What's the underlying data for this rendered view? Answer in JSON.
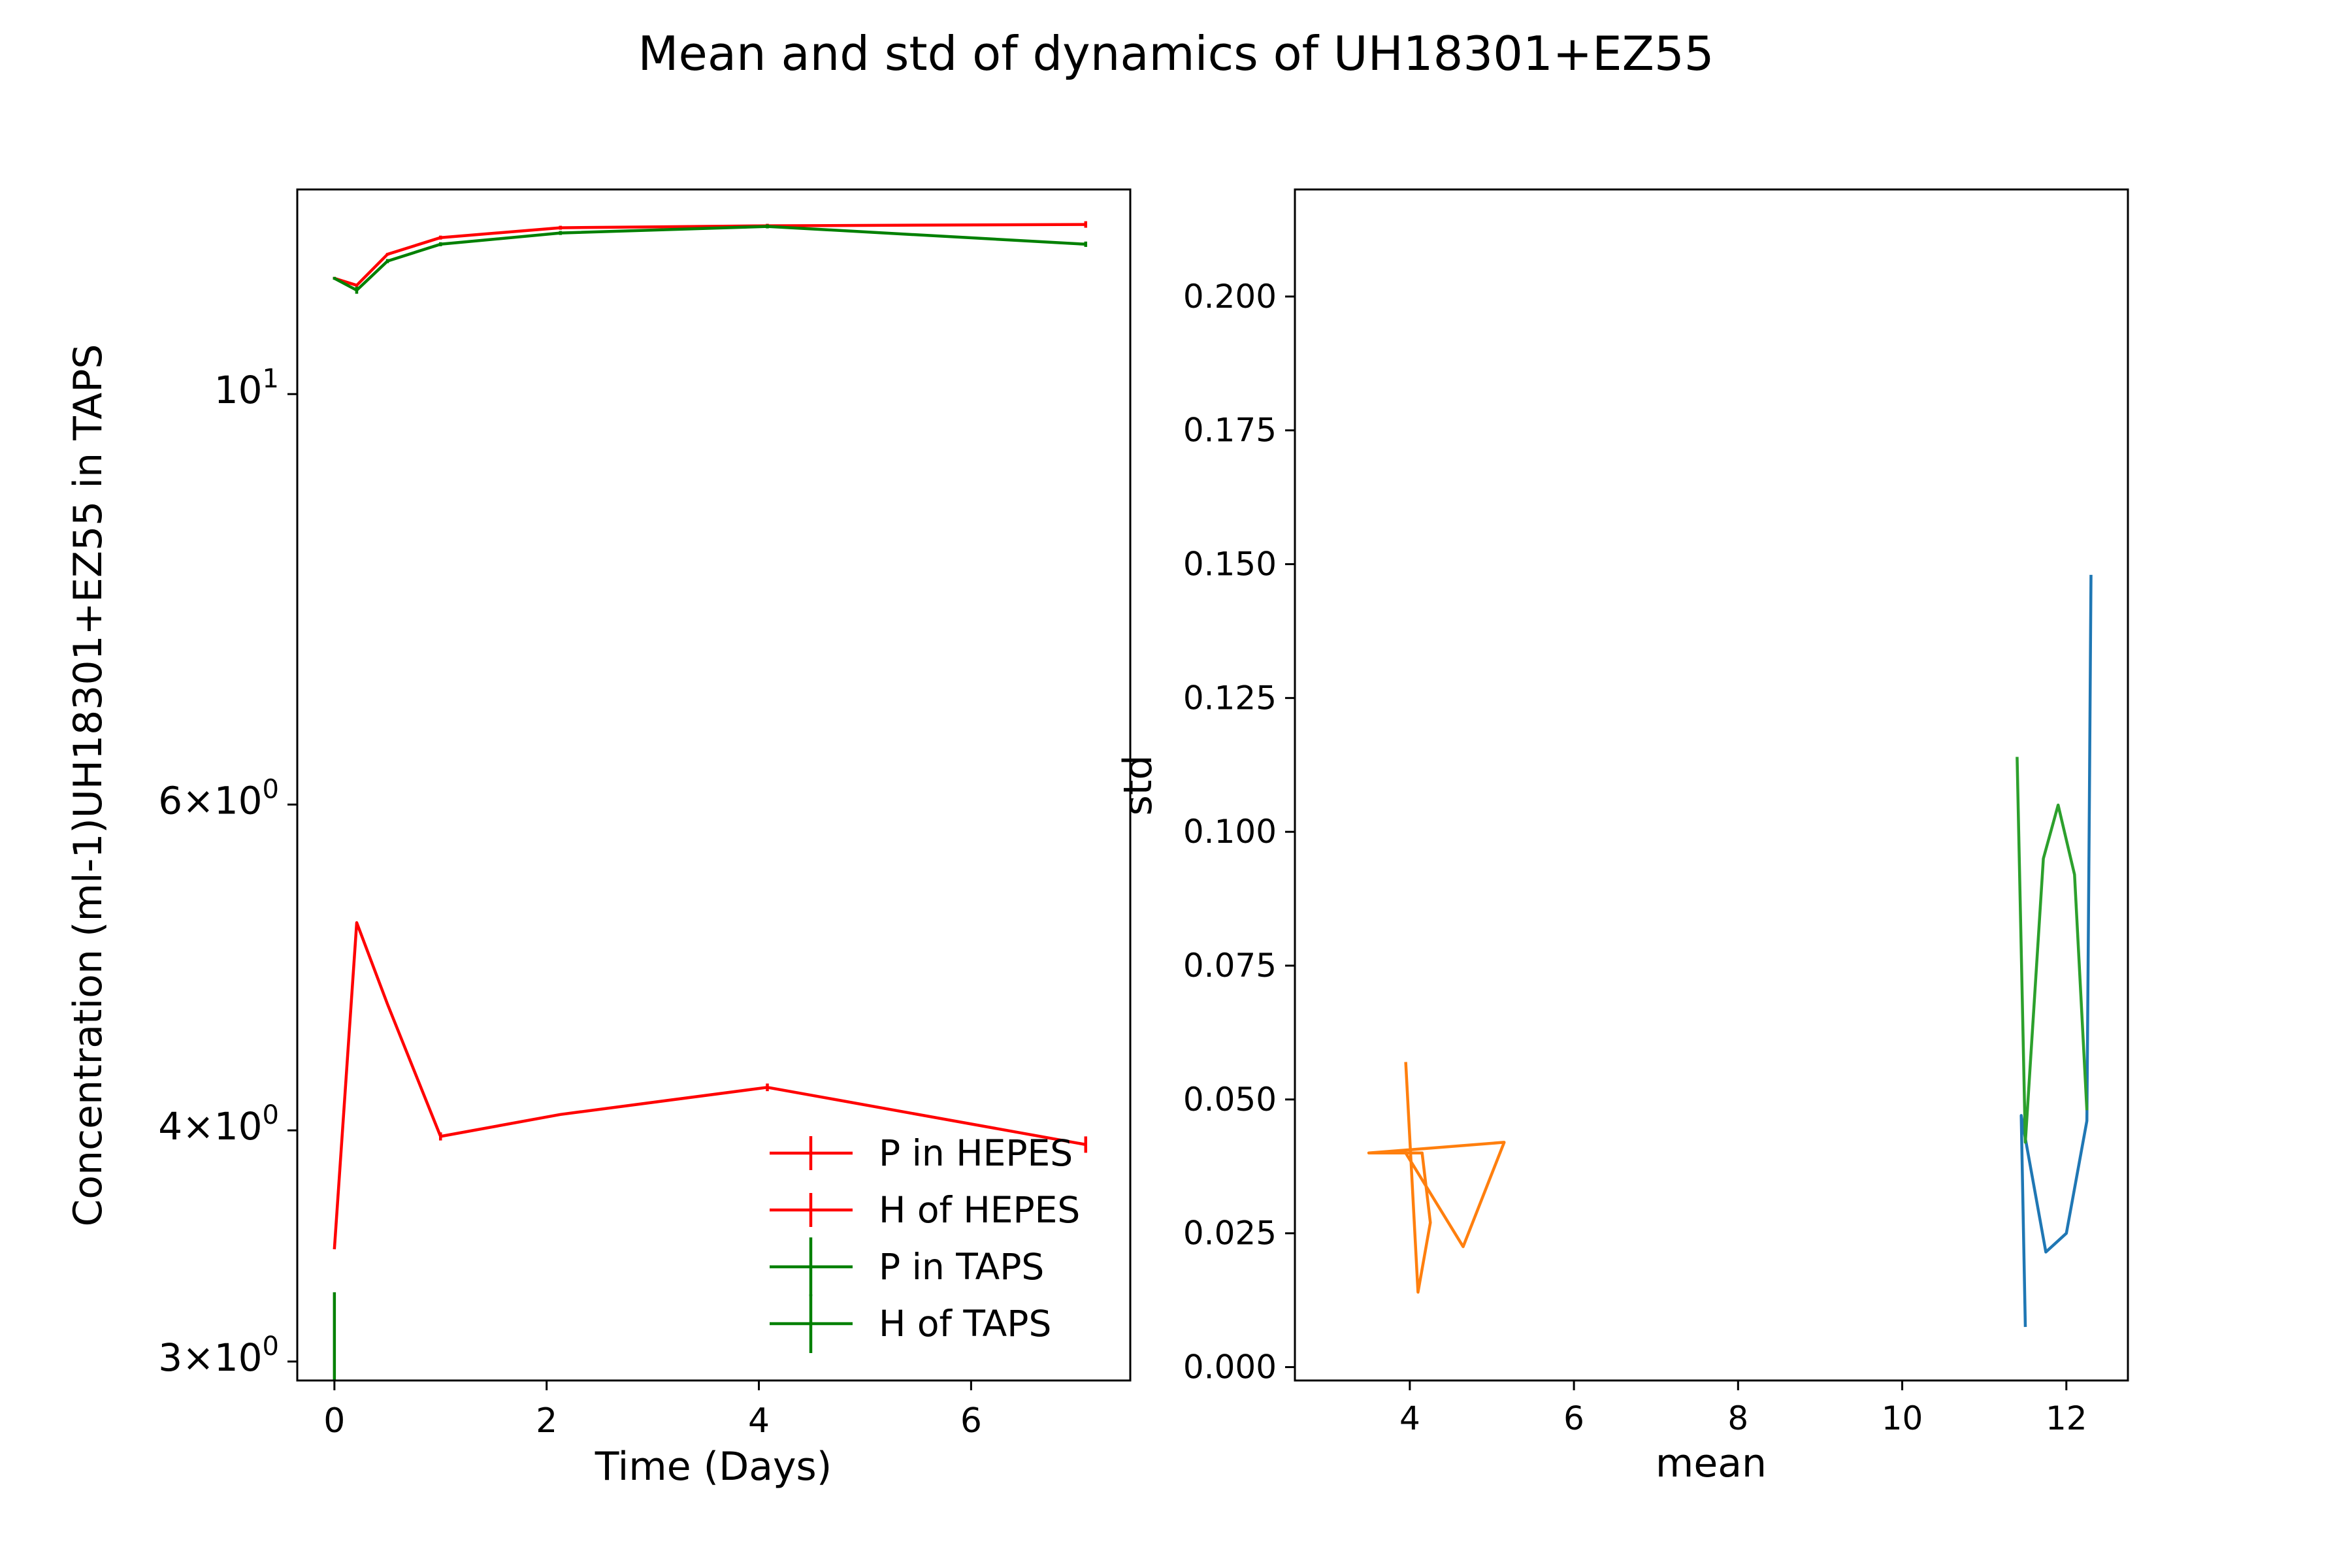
{
  "figure": {
    "title": "Mean and std of dynamics of UH18301+EZ55"
  },
  "chart_data": [
    {
      "type": "line",
      "yscale": "log",
      "xlabel": "Time (Days)",
      "ylabel": "Concentration (ml-1)UH18301+EZ55 in TAPS",
      "xlim": [
        -0.35,
        7.5
      ],
      "ylim": [
        2.93,
        12.9
      ],
      "xticks": [
        0,
        2,
        4,
        6
      ],
      "xtick_labels": [
        "0",
        "2",
        "4",
        "6"
      ],
      "yticks": [
        3,
        4,
        6,
        10
      ],
      "ytick_labels": [
        {
          "base": "3",
          "sym": "×",
          "pow": "10",
          "exp": "0"
        },
        {
          "base": "4",
          "sym": "×",
          "pow": "10",
          "exp": "0"
        },
        {
          "base": "6",
          "sym": "×",
          "pow": "10",
          "exp": "0"
        },
        {
          "base": "",
          "sym": "",
          "pow": "10",
          "exp": "1"
        }
      ],
      "legend_position": "lower-right",
      "series": [
        {
          "name": "P in HEPES",
          "color": "#ff0000",
          "x": [
            0,
            0.21,
            0.5,
            1,
            2.13,
            4.08,
            7.08
          ],
          "y": [
            11.55,
            11.45,
            11.9,
            12.15,
            12.3,
            12.33,
            12.35
          ],
          "err": [
            0.02,
            0.02,
            0.02,
            0.03,
            0.03,
            0.03,
            0.05
          ]
        },
        {
          "name": "H of HEPES",
          "color": "#ff0000",
          "x": [
            0,
            0.21,
            0.5,
            1,
            2.13,
            4.08,
            7.08
          ],
          "y": [
            3.45,
            5.18,
            4.68,
            3.97,
            4.08,
            4.22,
            3.93
          ],
          "err": [
            0.0,
            0.0,
            0.0,
            0.02,
            0.0,
            0.02,
            0.04
          ]
        },
        {
          "name": "P in TAPS",
          "color": "#008000",
          "x": [
            0,
            0.21,
            0.5,
            1,
            2.13,
            4.08,
            7.08
          ],
          "y": [
            11.55,
            11.38,
            11.8,
            12.05,
            12.22,
            12.32,
            12.05
          ],
          "err": [
            0.02,
            0.05,
            0.03,
            0.03,
            0.03,
            0.03,
            0.04
          ]
        },
        {
          "name": "H of TAPS",
          "color": "#008000",
          "x": [
            0
          ],
          "y": [
            3.1
          ],
          "err": [
            0.17
          ]
        }
      ]
    },
    {
      "type": "line",
      "xlabel": "mean",
      "ylabel": "std",
      "xlim": [
        2.6,
        12.75
      ],
      "ylim": [
        -0.0025,
        0.22
      ],
      "xticks": [
        4,
        6,
        8,
        10,
        12
      ],
      "xtick_labels": [
        "4",
        "6",
        "8",
        "10",
        "12"
      ],
      "yticks": [
        0,
        0.025,
        0.05,
        0.075,
        0.1,
        0.125,
        0.15,
        0.175,
        0.2
      ],
      "ytick_labels": [
        "0.000",
        "0.025",
        "0.050",
        "0.075",
        "0.100",
        "0.125",
        "0.150",
        "0.175",
        "0.200"
      ],
      "series": [
        {
          "color": "#1f77b4",
          "x": [
            11.5,
            11.45,
            11.75,
            12.0,
            12.25,
            12.28,
            12.3
          ],
          "y": [
            0.0075,
            0.047,
            0.0215,
            0.025,
            0.046,
            0.105,
            0.148
          ]
        },
        {
          "color": "#ff7f0e",
          "x": [
            3.95,
            4.1,
            4.25,
            4.15,
            3.5,
            5.15,
            4.65,
            3.95
          ],
          "y": [
            0.057,
            0.014,
            0.027,
            0.04,
            0.04,
            0.042,
            0.0225,
            0.04
          ]
        },
        {
          "color": "#2ca02c",
          "x": [
            11.4,
            11.5,
            11.72,
            11.9,
            12.1,
            12.25
          ],
          "y": [
            0.114,
            0.042,
            0.095,
            0.105,
            0.092,
            0.048
          ]
        }
      ]
    }
  ]
}
